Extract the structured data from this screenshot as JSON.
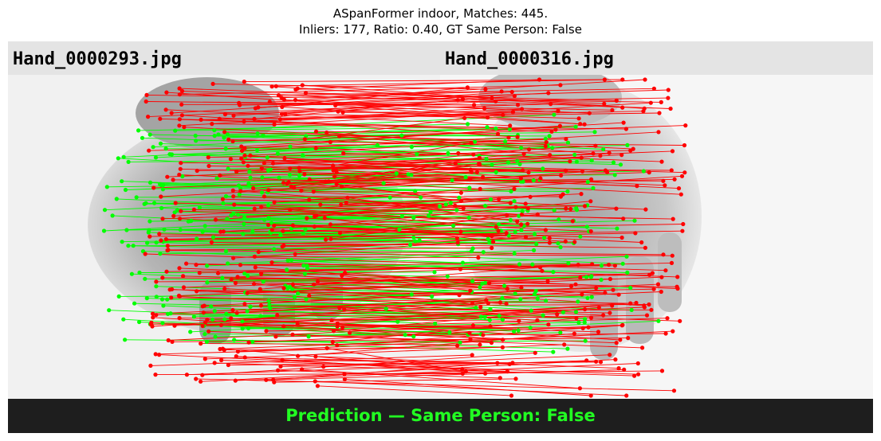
{
  "figure": {
    "title_line1": "ASpanFormer indoor, Matches: 445.",
    "title_line2": "Inliers: 177, Ratio: 0.40, GT Same Person: False"
  },
  "images": {
    "left_label": "Hand_0000293.jpg",
    "right_label": "Hand_0000316.jpg"
  },
  "prediction": {
    "text": "Prediction — Same Person: False"
  },
  "colors": {
    "inlier": "#00ff00",
    "outlier": "#ff0000",
    "prediction_text": "#22ff22",
    "footer_bg": "#1e1e1e",
    "header_bg": "#e4e4e4"
  },
  "stats": {
    "matches": 445,
    "inliers": 177,
    "ratio": 0.4
  }
}
